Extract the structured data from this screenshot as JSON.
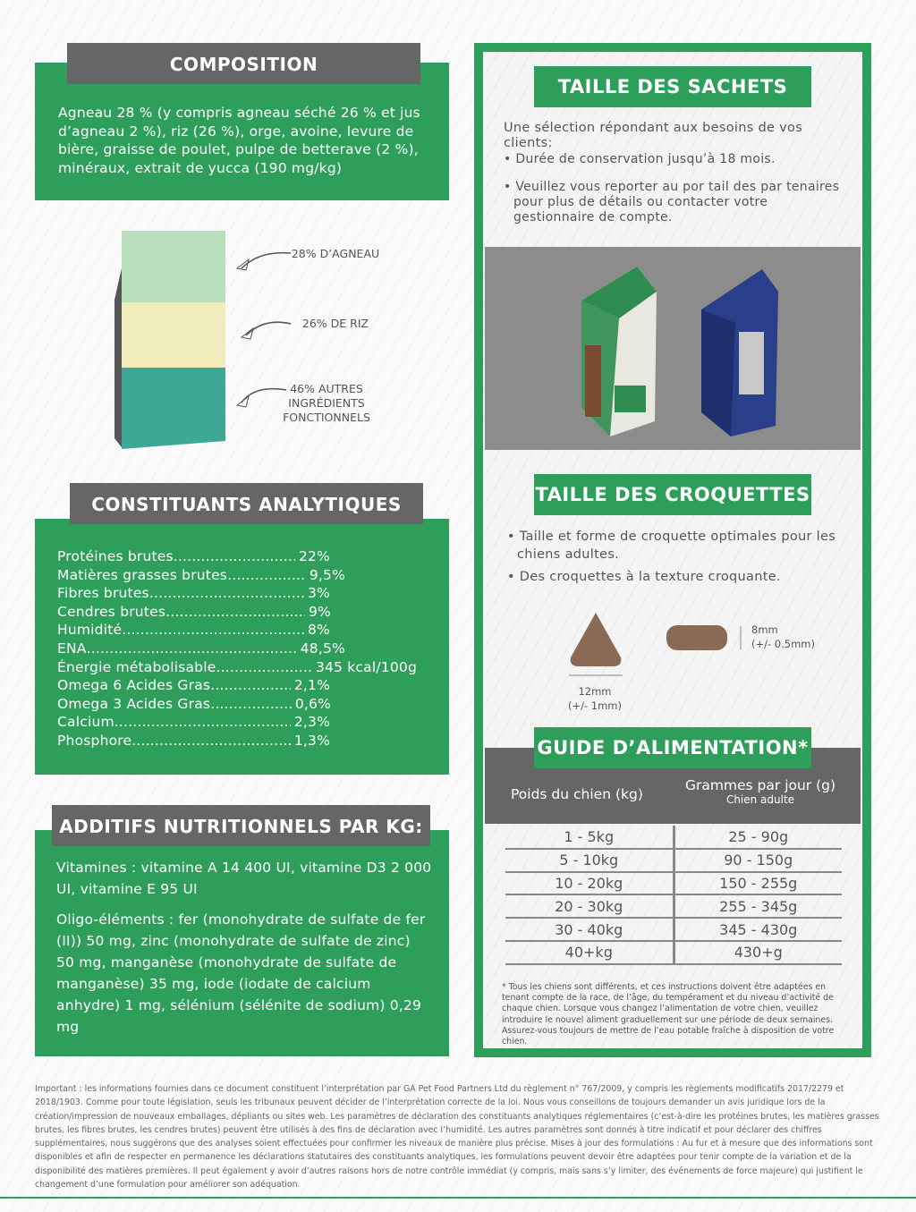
{
  "composition": {
    "title": "COMPOSITION",
    "text": "Agneau 28 % (y compris agneau séché 26 % et jus d’agneau 2 %), riz (26 %), orge, avoine, levure de bière, graisse de poulet, pulpe de betterave (2 %), minéraux, extrait de yucca (190 mg/kg)"
  },
  "bag_chart": {
    "labels": [
      "28% D’AGNEAU",
      "26% DE RIZ",
      "46% AUTRES INGRÉDIENTS FONCTIONNELS"
    ],
    "values": [
      28,
      26,
      46
    ],
    "colors": [
      "#b9e0bd",
      "#f0ecbb",
      "#3ea896"
    ]
  },
  "analytical": {
    "title": "CONSTITUANTS ANALYTIQUES",
    "items": [
      {
        "name": "Protéines brutes",
        "value": "22%"
      },
      {
        "name": "Matières grasses brutes",
        "value": "9,5%"
      },
      {
        "name": "Fibres brutes",
        "value": "3%"
      },
      {
        "name": "Cendres brutes",
        "value": "9%"
      },
      {
        "name": "Humidité",
        "value": "8%"
      },
      {
        "name": "ENA",
        "value": "48,5%"
      },
      {
        "name": "Énergie métabolisable",
        "value": "345 kcal/100g"
      },
      {
        "name": "Omega 6 Acides Gras",
        "value": "2,1%"
      },
      {
        "name": "Omega 3 Acides Gras",
        "value": "0,6%"
      },
      {
        "name": "Calcium",
        "value": "2,3%"
      },
      {
        "name": "Phosphore",
        "value": "1,3%"
      }
    ]
  },
  "additives": {
    "title": "ADDITIFS NUTRITIONNELS PAR KG:",
    "vitamins": "Vitamines : vitamine A 14 400 UI, vitamine D3 2 000 UI, vitamine E 95 UI",
    "trace": "Oligo-éléments : fer (monohydrate de sulfate de fer (II)) 50 mg, zinc (monohydrate de sulfate de zinc) 50 mg, manganèse (monohydrate de sulfate de manganèse) 35 mg, iode (iodate de calcium anhydre) 1 mg, sélénium (sélénite de sodium) 0,29 mg"
  },
  "sachets": {
    "title": "TAILLE DES SACHETS",
    "intro": "Une sélection répondant aux besoins de vos clients:",
    "bullets": [
      "Durée de conservation jusqu’à 18 mois.",
      "Veuillez vous reporter au por tail des par tenaires pour plus de détails ou contacter votre gestionnaire de compte."
    ]
  },
  "croquettes": {
    "title": "TAILLE DES CROQUETTES",
    "bullets": [
      "Taille et forme de croquette optimales pour les chiens adultes.",
      "Des croquettes à la texture croquante."
    ],
    "width_label": "12mm",
    "width_tol": "(+/- 1mm)",
    "height_label": "8mm",
    "height_tol": "(+/- 0.5mm)"
  },
  "feeding": {
    "title": "GUIDE D’ALIMENTATION*",
    "col1": "Poids du chien (kg)",
    "col2": "Grammes par jour (g)",
    "col2_sub": "Chien adulte",
    "rows": [
      [
        "1 - 5kg",
        "25 - 90g"
      ],
      [
        "5 - 10kg",
        "90 - 150g"
      ],
      [
        "10 - 20kg",
        "150 - 255g"
      ],
      [
        "20 - 30kg",
        "255 - 345g"
      ],
      [
        "30 - 40kg",
        "345 - 430g"
      ],
      [
        "40+kg",
        "430+g"
      ]
    ],
    "footnote": "* Tous les chiens sont différents, et ces instructions doivent être adaptées en tenant compte de la race, de l’âge, du tempérament et du niveau d’activité de chaque chien. Lorsque vous changez l’alimentation de votre chien, veuillez introduire le nouvel aliment graduellement sur une période de deux semaines. Assurez-vous toujours de mettre de l’eau potable fraîche à disposition de votre chien."
  },
  "footer": "Important : les informations fournies dans ce document constituent l’interprétation par GA Pet Food Partners Ltd du règlement n° 767/2009, y compris les règlements modificatifs 2017/2279 et 2018/1903. Comme pour toute législation, seuls les tribunaux peuvent décider de l’interprétation correcte de la loi. Nous vous conseillons de toujours demander un avis juridique lors de la création/impression de nouveaux emballages, dépliants ou sites web. Les paramètres de déclaration des constituants analytiques réglementaires (c’est-à-dire les protéines brutes, les matières grasses brutes, les fibres brutes, les cendres brutes) peuvent être utilisés à des fins de déclaration avec l’humidité. Les autres paramètres sont donnés à titre indicatif et pour déclarer des chiffres supplémentaires, nous suggérons que des analyses soient effectuées pour confirmer les niveaux de manière plus précise. Mises à jour des formulations : Au fur et à mesure que des informations sont disponibles et afin de respecter en permanence les déclarations statutaires des constituants analytiques, les formulations peuvent devoir être adaptées pour tenir compte de la variation et de la disponibilité des matières premières. Il peut également y avoir d’autres raisons hors de notre contrôle immédiat (y compris, mais sans s’y limiter, des événements de force majeure) qui justifient le changement d’une formulation pour améliorer son adéquation."
}
